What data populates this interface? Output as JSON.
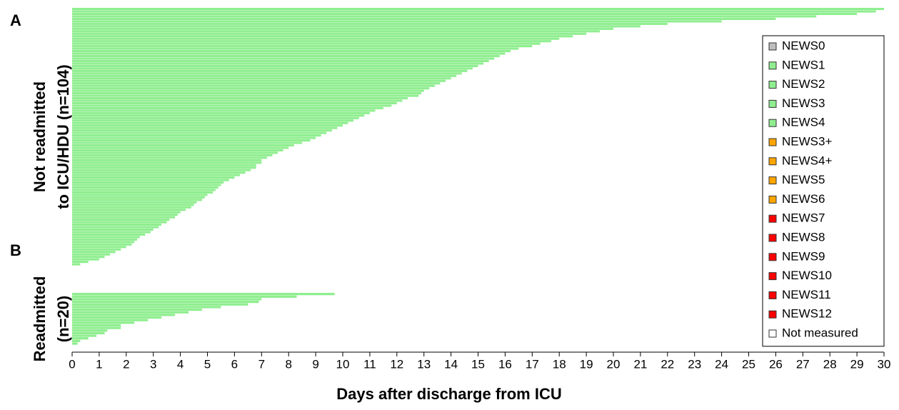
{
  "chart_data": {
    "type": "timeline",
    "xlabel": "Days after discharge from ICU",
    "xlim": [
      0,
      30
    ],
    "xticks": [
      0,
      1,
      2,
      3,
      4,
      5,
      6,
      7,
      8,
      9,
      10,
      11,
      12,
      13,
      14,
      15,
      16,
      17,
      18,
      19,
      20,
      21,
      22,
      23,
      24,
      25,
      26,
      27,
      28,
      29,
      30
    ],
    "color": "#90ee90",
    "panels": [
      {
        "label": "A",
        "ylabel": [
          "Not readmitted",
          "to ICU/HDU (n=104)"
        ],
        "values": [
          30,
          29.7,
          29,
          27.5,
          26,
          24,
          22,
          21,
          20,
          19.5,
          19,
          18.5,
          18,
          17.7,
          17.3,
          17,
          16.5,
          16.2,
          16,
          15.8,
          15.6,
          15.4,
          15.2,
          15,
          14.8,
          14.6,
          14.4,
          14.2,
          14,
          13.8,
          13.6,
          13.4,
          13.2,
          13,
          12.9,
          12.8,
          12.4,
          12.2,
          12,
          11.8,
          11.5,
          11.2,
          11,
          10.8,
          10.6,
          10.4,
          10.2,
          10,
          9.8,
          9.6,
          9.4,
          9.2,
          9,
          8.8,
          8.5,
          8.2,
          8,
          7.8,
          7.6,
          7.4,
          7.2,
          7,
          7,
          6.8,
          6.8,
          6.6,
          6.4,
          6.2,
          6,
          5.8,
          5.6,
          5.5,
          5.4,
          5.3,
          5.2,
          5,
          4.9,
          4.8,
          4.6,
          4.5,
          4.4,
          4.2,
          4,
          3.9,
          3.8,
          3.6,
          3.5,
          3.3,
          3.2,
          3,
          2.9,
          2.7,
          2.5,
          2.4,
          2.3,
          2.2,
          2,
          1.8,
          1.6,
          1.4,
          1.2,
          1,
          0.6,
          0.3
        ]
      },
      {
        "label": "B",
        "ylabel": [
          "Readmitted",
          "(n=20)"
        ],
        "values": [
          9.7,
          8.3,
          7,
          6.9,
          6.5,
          5.5,
          4.8,
          4.3,
          3.8,
          3.3,
          2.8,
          2.3,
          1.8,
          1.8,
          1.3,
          1.2,
          0.9,
          0.6,
          0.3,
          0.2
        ]
      }
    ],
    "legend": [
      {
        "name": "NEWS0",
        "color": "#bebebe"
      },
      {
        "name": "NEWS1",
        "color": "#90ee90"
      },
      {
        "name": "NEWS2",
        "color": "#90ee90"
      },
      {
        "name": "NEWS3",
        "color": "#90ee90"
      },
      {
        "name": "NEWS4",
        "color": "#90ee90"
      },
      {
        "name": "NEWS3+",
        "color": "#ffa500"
      },
      {
        "name": "NEWS4+",
        "color": "#ffa500"
      },
      {
        "name": "NEWS5",
        "color": "#ffa500"
      },
      {
        "name": "NEWS6",
        "color": "#ffa500"
      },
      {
        "name": "NEWS7",
        "color": "#ff0000"
      },
      {
        "name": "NEWS8",
        "color": "#ff0000"
      },
      {
        "name": "NEWS9",
        "color": "#ff0000"
      },
      {
        "name": "NEWS10",
        "color": "#ff0000"
      },
      {
        "name": "NEWS11",
        "color": "#ff0000"
      },
      {
        "name": "NEWS12",
        "color": "#ff0000"
      },
      {
        "name": "Not measured",
        "color": "#ffffff"
      }
    ]
  }
}
